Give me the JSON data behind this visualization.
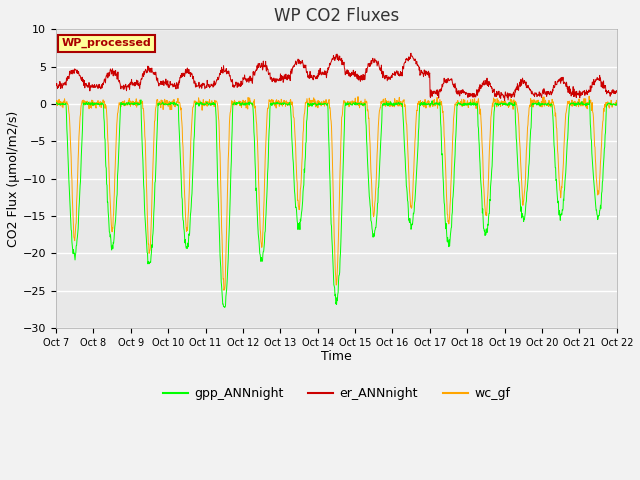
{
  "title": "WP CO2 Fluxes",
  "xlabel": "Time",
  "ylabel": "CO2 Flux (μmol/m2/s)",
  "ylim": [
    -30,
    10
  ],
  "yticks": [
    10,
    5,
    0,
    -5,
    -10,
    -15,
    -20,
    -25,
    -30
  ],
  "n_days": 15,
  "pts_per_day": 96,
  "gpp_color": "#00ff00",
  "er_color": "#cc0000",
  "wc_color": "#ffa500",
  "bg_color": "#e8e8e8",
  "legend_labels": [
    "gpp_ANNnight",
    "er_ANNnight",
    "wc_gf"
  ],
  "watermark_text": "WP_processed",
  "watermark_bg": "#ffff99",
  "watermark_fg": "#aa0000",
  "tick_labels": [
    "Oct 7",
    "Oct 8",
    "Oct 9",
    "Oct 10",
    "Oct 11",
    "Oct 12",
    "Oct 13",
    "Oct 14",
    "Oct 15",
    "Oct 16",
    "Oct 17",
    "Oct 18",
    "Oct 19",
    "Oct 20",
    "Oct 21",
    "Oct 22"
  ],
  "title_fontsize": 12,
  "axis_fontsize": 9,
  "tick_fontsize": 8,
  "gpp_depths": [
    20.5,
    19.0,
    21.5,
    19.5,
    27.5,
    21.0,
    16.5,
    26.5,
    17.5,
    16.5,
    18.5,
    17.5,
    15.5,
    15.0,
    15.0
  ],
  "er_bases": [
    3.0,
    2.8,
    3.2,
    2.8,
    3.0,
    3.8,
    4.2,
    4.8,
    4.2,
    4.8,
    1.8,
    1.4,
    1.4,
    1.8,
    1.8
  ],
  "wc_depths": [
    18.0,
    17.0,
    20.0,
    17.0,
    25.0,
    19.0,
    14.0,
    24.0,
    15.0,
    14.0,
    16.0,
    15.0,
    13.0,
    12.0,
    12.0
  ],
  "wc_spike_sharpness": 3.0
}
